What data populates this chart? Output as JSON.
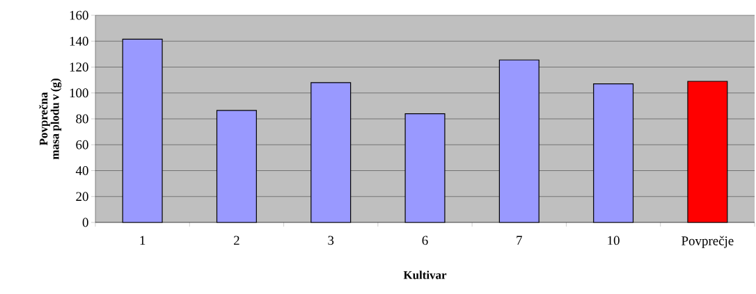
{
  "chart_data": {
    "type": "bar",
    "xlabel": "Kultivar",
    "ylabel": "Povprečna masa plodu v (g)",
    "categories": [
      "1",
      "2",
      "3",
      "6",
      "7",
      "10",
      "Povprečje"
    ],
    "values": [
      141.5,
      86.5,
      108,
      84,
      125.5,
      107,
      109
    ],
    "colors": [
      "#9999ff",
      "#9999ff",
      "#9999ff",
      "#9999ff",
      "#9999ff",
      "#9999ff",
      "#ff0000"
    ],
    "ylim": [
      0,
      160
    ],
    "yticks": [
      0,
      20,
      40,
      60,
      80,
      100,
      120,
      140,
      160
    ],
    "grid": "y"
  }
}
